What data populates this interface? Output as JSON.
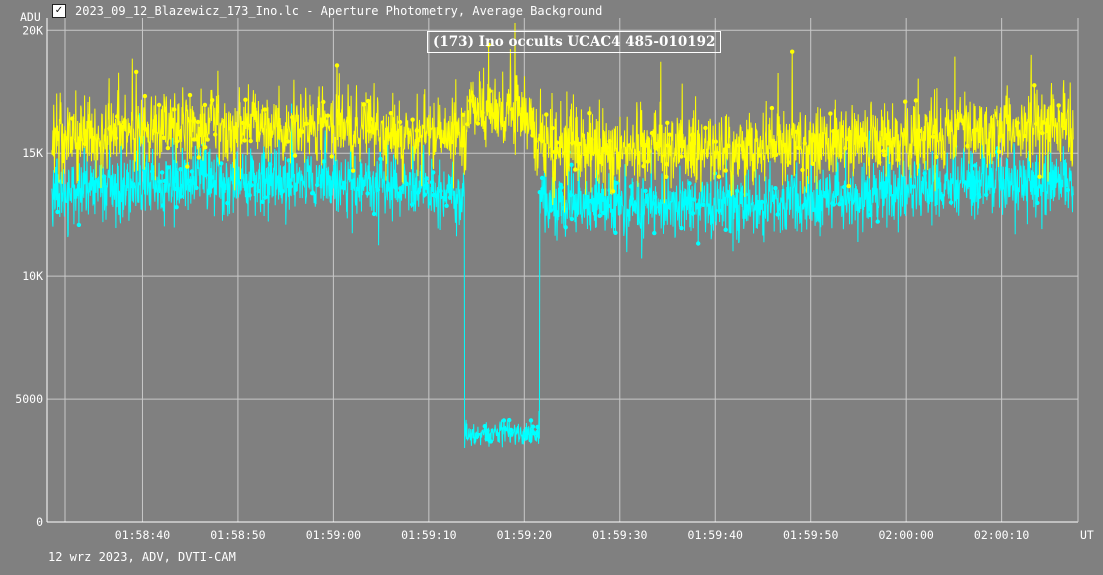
{
  "window": {
    "title": "2023_09_12_Blazewicz_173_Ino.lc - Aperture Photometry, Average Background",
    "icon": "lightcurve-app-icon"
  },
  "footer": {
    "text": "12 wrz 2023, ADV, DVTI-CAM"
  },
  "colors": {
    "background": "#808080",
    "grid": "#c8c8c8",
    "axis": "#ffffff",
    "target_series": "#00ffff",
    "comparison_series": "#ffff00"
  },
  "chart_data": {
    "type": "line",
    "title": "(173) Ino occults UCAC4 485-010192",
    "ylabel": "ADU",
    "xlabel": "UT",
    "grid": true,
    "xlim": [
      "01:58:30",
      "02:00:18"
    ],
    "ylim": [
      0,
      20500
    ],
    "x_ticks": [
      "01:58:40",
      "01:58:50",
      "01:59:00",
      "01:59:10",
      "01:59:20",
      "01:59:30",
      "01:59:40",
      "01:59:50",
      "02:00:00",
      "02:00:10"
    ],
    "y_ticks": [
      {
        "value": 0,
        "label": "0"
      },
      {
        "value": 5000,
        "label": "5000"
      },
      {
        "value": 10000,
        "label": "10K"
      },
      {
        "value": 15000,
        "label": "15K"
      },
      {
        "value": 20000,
        "label": "20K"
      }
    ],
    "series": [
      {
        "color": "#00ffff",
        "mean_baseline": 13400,
        "scatter": 1200,
        "events": [
          {
            "start": "01:59:13.7",
            "end": "01:59:21.6",
            "level": 3600,
            "scatter": 450
          }
        ]
      },
      {
        "color": "#ffff00",
        "mean_baseline": 15600,
        "scatter": 1300,
        "events": []
      }
    ],
    "sampling_interval_s": 0.04
  }
}
